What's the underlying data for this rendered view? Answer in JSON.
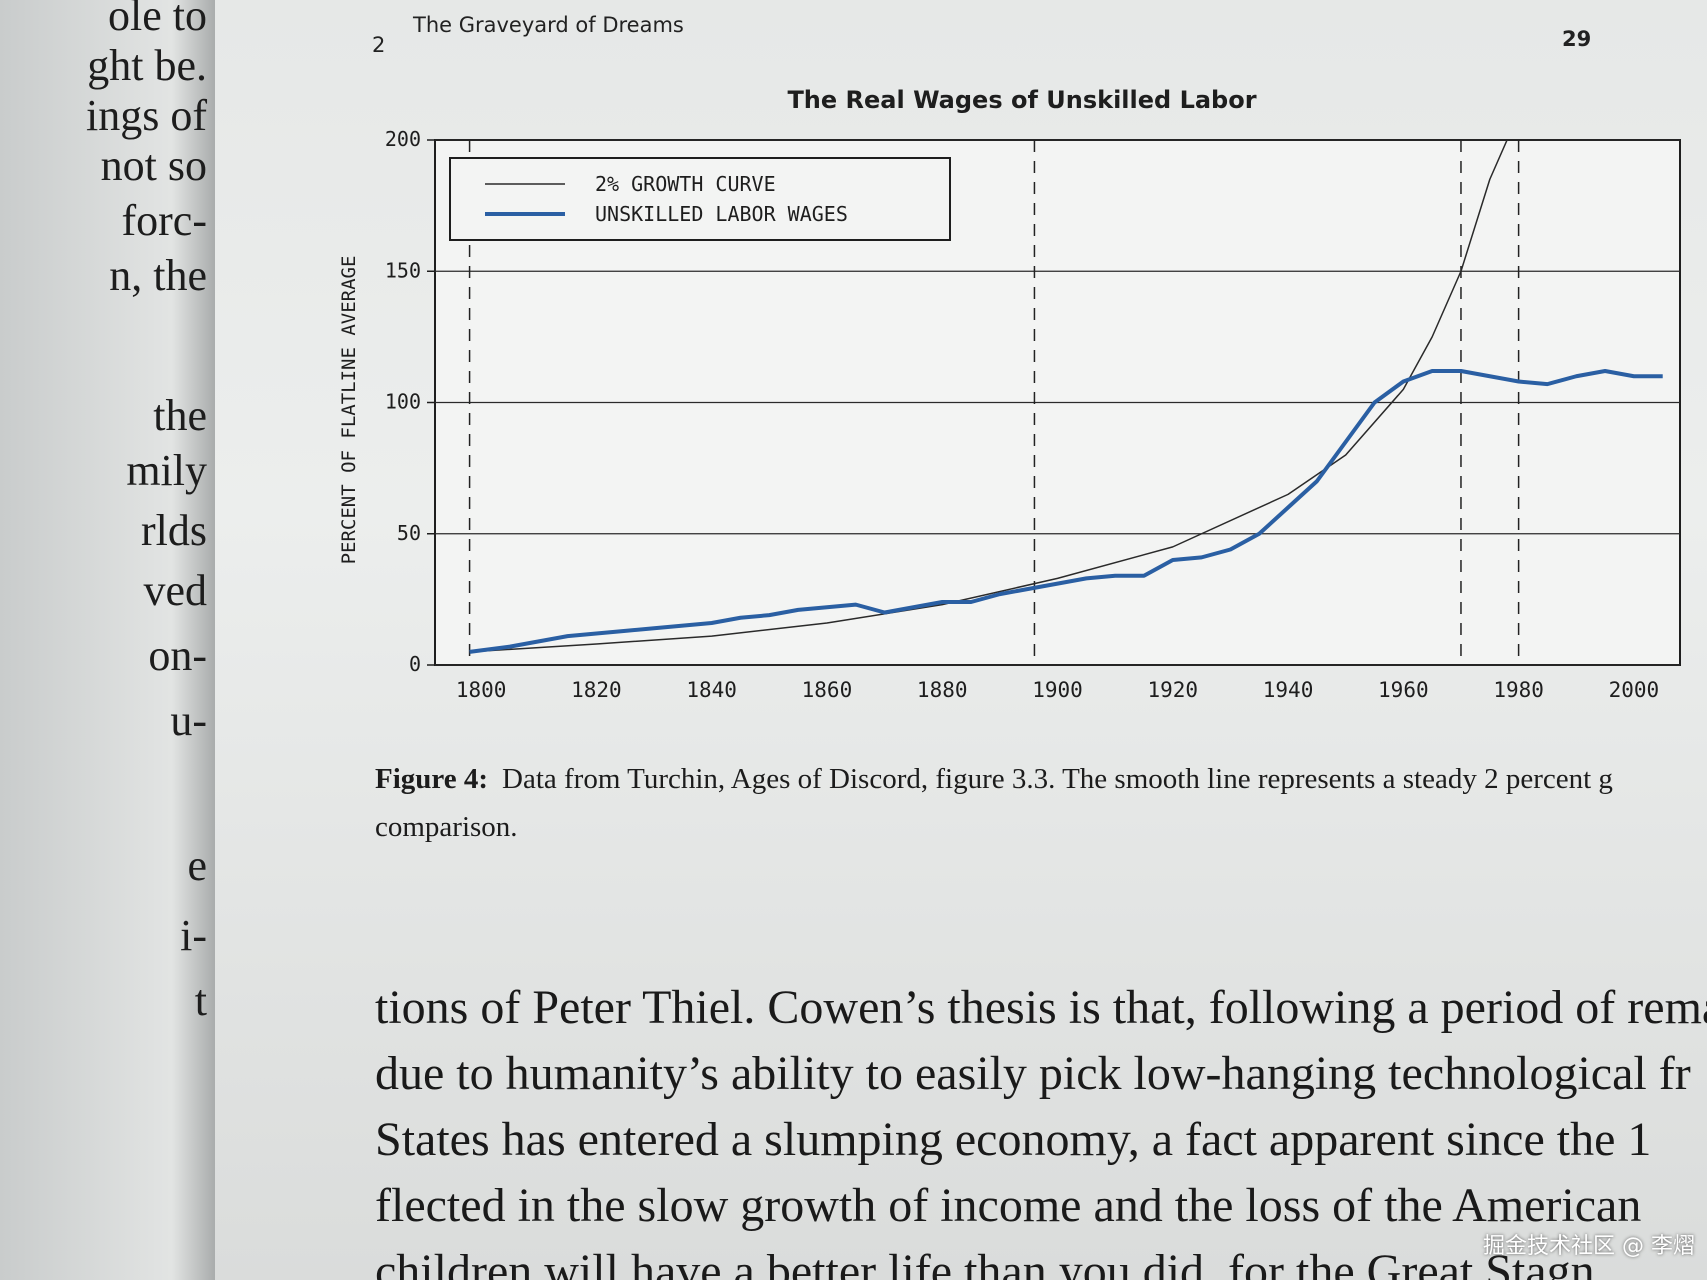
{
  "header": {
    "chapter_number": "2",
    "chapter_title": "The Graveyard of Dreams",
    "page_number": "29"
  },
  "left_page": {
    "lines": [
      "ole to",
      "ght be.",
      "ings of",
      "not so",
      "forc-",
      "n, the",
      "the",
      "mily",
      "rlds",
      "ved",
      "on-",
      "u-",
      "e",
      "i-",
      "t"
    ]
  },
  "chart_data": {
    "type": "line",
    "title": "The Real Wages of Unskilled Labor",
    "y_label": "PERCENT OF FLATLINE AVERAGE",
    "xlim": [
      1792,
      2008
    ],
    "xticks": [
      1800,
      1820,
      1840,
      1860,
      1880,
      1900,
      1920,
      1940,
      1960,
      1980,
      2000
    ],
    "ylim": [
      0,
      200
    ],
    "yticks": [
      0,
      50,
      100,
      150,
      200
    ],
    "grid": true,
    "legend": "top-left",
    "vlines": [
      1798,
      1896,
      1970,
      1980
    ],
    "series": [
      {
        "name": "2% GROWTH CURVE",
        "color": "#2a2a2a",
        "x": [
          1798,
          1820,
          1840,
          1860,
          1880,
          1900,
          1920,
          1940,
          1950,
          1960,
          1965,
          1970,
          1975,
          1978
        ],
        "values": [
          5,
          8,
          11,
          16,
          23,
          33,
          45,
          65,
          80,
          105,
          125,
          150,
          185,
          200
        ]
      },
      {
        "name": "UNSKILLED LABOR WAGES",
        "color": "#2a5fa3",
        "x": [
          1798,
          1805,
          1810,
          1815,
          1820,
          1825,
          1830,
          1835,
          1840,
          1845,
          1850,
          1855,
          1860,
          1865,
          1870,
          1875,
          1880,
          1885,
          1890,
          1895,
          1900,
          1905,
          1910,
          1915,
          1920,
          1925,
          1930,
          1935,
          1940,
          1945,
          1950,
          1955,
          1960,
          1965,
          1970,
          1975,
          1980,
          1985,
          1990,
          1995,
          2000,
          2005
        ],
        "values": [
          5,
          7,
          9,
          11,
          12,
          13,
          14,
          15,
          16,
          18,
          19,
          21,
          22,
          23,
          20,
          22,
          24,
          24,
          27,
          29,
          31,
          33,
          34,
          34,
          40,
          41,
          44,
          50,
          60,
          70,
          85,
          100,
          108,
          112,
          112,
          110,
          108,
          107,
          110,
          112,
          110,
          110
        ]
      }
    ]
  },
  "caption": {
    "label": "Figure 4:",
    "text": "Data from Turchin, Ages of Discord, figure 3.3. The smooth line represents a steady 2 percent g",
    "continuation": "comparison."
  },
  "body": {
    "lines": [
      "tions of Peter Thiel. Cowen’s thesis is that, following a period of remark",
      "due to humanity’s ability to easily pick low-hanging technological fr",
      "States has entered a slumping economy, a fact apparent since the 1",
      "flected in the slow growth of income and the loss of the American",
      "children will have a better life than you did.          for the Great Stagn"
    ]
  },
  "watermark": "掘金技术社区 @ 李熠"
}
